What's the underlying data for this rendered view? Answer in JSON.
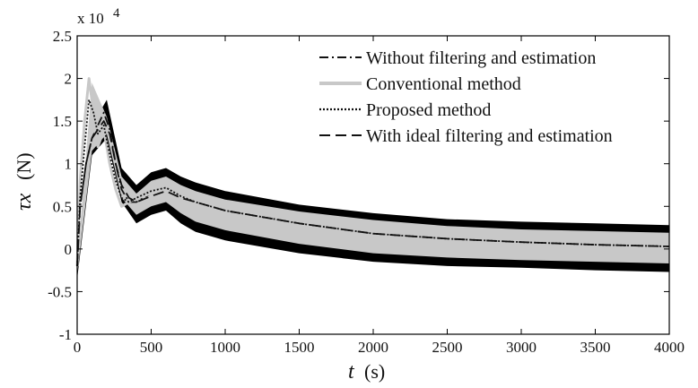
{
  "chart_data": {
    "type": "line",
    "xlabel_symbol": "t",
    "xlabel_unit": "(s)",
    "ylabel_symbol": "τx",
    "ylabel_unit": "(N)",
    "exponent_label": "x 10",
    "exponent_power": "4",
    "xlim": [
      0,
      4000
    ],
    "ylim": [
      -1,
      2.5
    ],
    "x_ticks": [
      "0",
      "500",
      "1000",
      "1500",
      "2000",
      "2500",
      "3000",
      "3500",
      "4000"
    ],
    "y_ticks": [
      "-1",
      "-0.5",
      "0",
      "0.5",
      "1",
      "1.5",
      "2",
      "2.5"
    ],
    "grid": false,
    "legend_position": "top-right",
    "series": [
      {
        "name": "Without filtering and estimation",
        "style": "dash-dot",
        "color": "#111111",
        "x": [
          0,
          20,
          60,
          100,
          140,
          180,
          220,
          260,
          300,
          350,
          400,
          500,
          600,
          700,
          800,
          1000,
          1500,
          2000,
          2500,
          3000,
          3500,
          4000
        ],
        "y": [
          -0.2,
          0.5,
          1.0,
          1.3,
          1.45,
          1.6,
          1.4,
          1.0,
          0.7,
          0.55,
          0.55,
          0.65,
          0.7,
          0.6,
          0.55,
          0.45,
          0.3,
          0.18,
          0.12,
          0.08,
          0.05,
          0.03
        ]
      },
      {
        "name": "Conventional method",
        "style": "solid",
        "color": "#c8c8c8",
        "x": [
          0,
          20,
          50,
          80,
          110,
          140,
          180,
          220,
          260,
          300,
          350,
          400,
          500,
          600,
          700,
          800,
          1000,
          1500,
          2000,
          2500,
          3000,
          3500,
          4000
        ],
        "y": [
          -0.2,
          0.8,
          1.5,
          2.0,
          1.6,
          1.2,
          1.4,
          1.0,
          0.7,
          0.5,
          0.55,
          0.6,
          0.65,
          0.7,
          0.6,
          0.55,
          0.45,
          0.3,
          0.18,
          0.12,
          0.08,
          0.05,
          0.03
        ]
      },
      {
        "name": "Proposed method",
        "style": "dotted",
        "color": "#111111",
        "x": [
          0,
          20,
          50,
          80,
          110,
          140,
          180,
          220,
          260,
          300,
          350,
          400,
          500,
          600,
          700,
          800,
          1000,
          1500,
          2000,
          2500,
          3000,
          3500,
          4000
        ],
        "y": [
          -0.2,
          0.6,
          1.2,
          1.75,
          1.6,
          1.35,
          1.45,
          1.1,
          0.8,
          0.6,
          0.55,
          0.6,
          0.68,
          0.72,
          0.62,
          0.55,
          0.45,
          0.3,
          0.18,
          0.12,
          0.08,
          0.05,
          0.03
        ]
      },
      {
        "name": "With ideal filtering and estimation",
        "style": "dashed",
        "color": "#111111",
        "x": [
          0,
          20,
          60,
          100,
          140,
          180,
          220,
          260,
          300,
          350,
          400,
          500,
          600,
          700,
          800,
          1000,
          1500,
          2000,
          2500,
          3000,
          3500,
          4000
        ],
        "y": [
          -0.2,
          0.5,
          1.0,
          1.3,
          1.4,
          1.5,
          1.35,
          1.0,
          0.75,
          0.6,
          0.55,
          0.62,
          0.68,
          0.6,
          0.55,
          0.45,
          0.3,
          0.18,
          0.12,
          0.08,
          0.05,
          0.03
        ]
      }
    ],
    "oscillation_band": {
      "color": "#000000",
      "x": [
        0,
        100,
        200,
        300,
        400,
        500,
        600,
        700,
        800,
        1000,
        1500,
        2000,
        2500,
        3000,
        3500,
        4000
      ],
      "upper": [
        -0.1,
        1.45,
        1.75,
        0.95,
        0.75,
        0.9,
        0.95,
        0.85,
        0.78,
        0.68,
        0.52,
        0.42,
        0.35,
        0.32,
        0.3,
        0.28
      ],
      "lower": [
        -0.35,
        1.1,
        1.3,
        0.55,
        0.3,
        0.4,
        0.45,
        0.3,
        0.2,
        0.1,
        -0.05,
        -0.15,
        -0.2,
        -0.22,
        -0.25,
        -0.27
      ]
    },
    "conventional_band": {
      "color": "#c8c8c8",
      "x": [
        0,
        100,
        200,
        300,
        400,
        500,
        600,
        700,
        800,
        1000,
        1500,
        2000,
        2500,
        3000,
        3500,
        4000
      ],
      "upper": [
        -0.15,
        1.95,
        1.55,
        0.85,
        0.65,
        0.8,
        0.85,
        0.75,
        0.68,
        0.58,
        0.44,
        0.34,
        0.27,
        0.23,
        0.21,
        0.19
      ],
      "lower": [
        -0.3,
        1.15,
        1.35,
        0.6,
        0.4,
        0.5,
        0.55,
        0.42,
        0.32,
        0.22,
        0.06,
        -0.05,
        -0.1,
        -0.13,
        -0.15,
        -0.17
      ]
    }
  }
}
